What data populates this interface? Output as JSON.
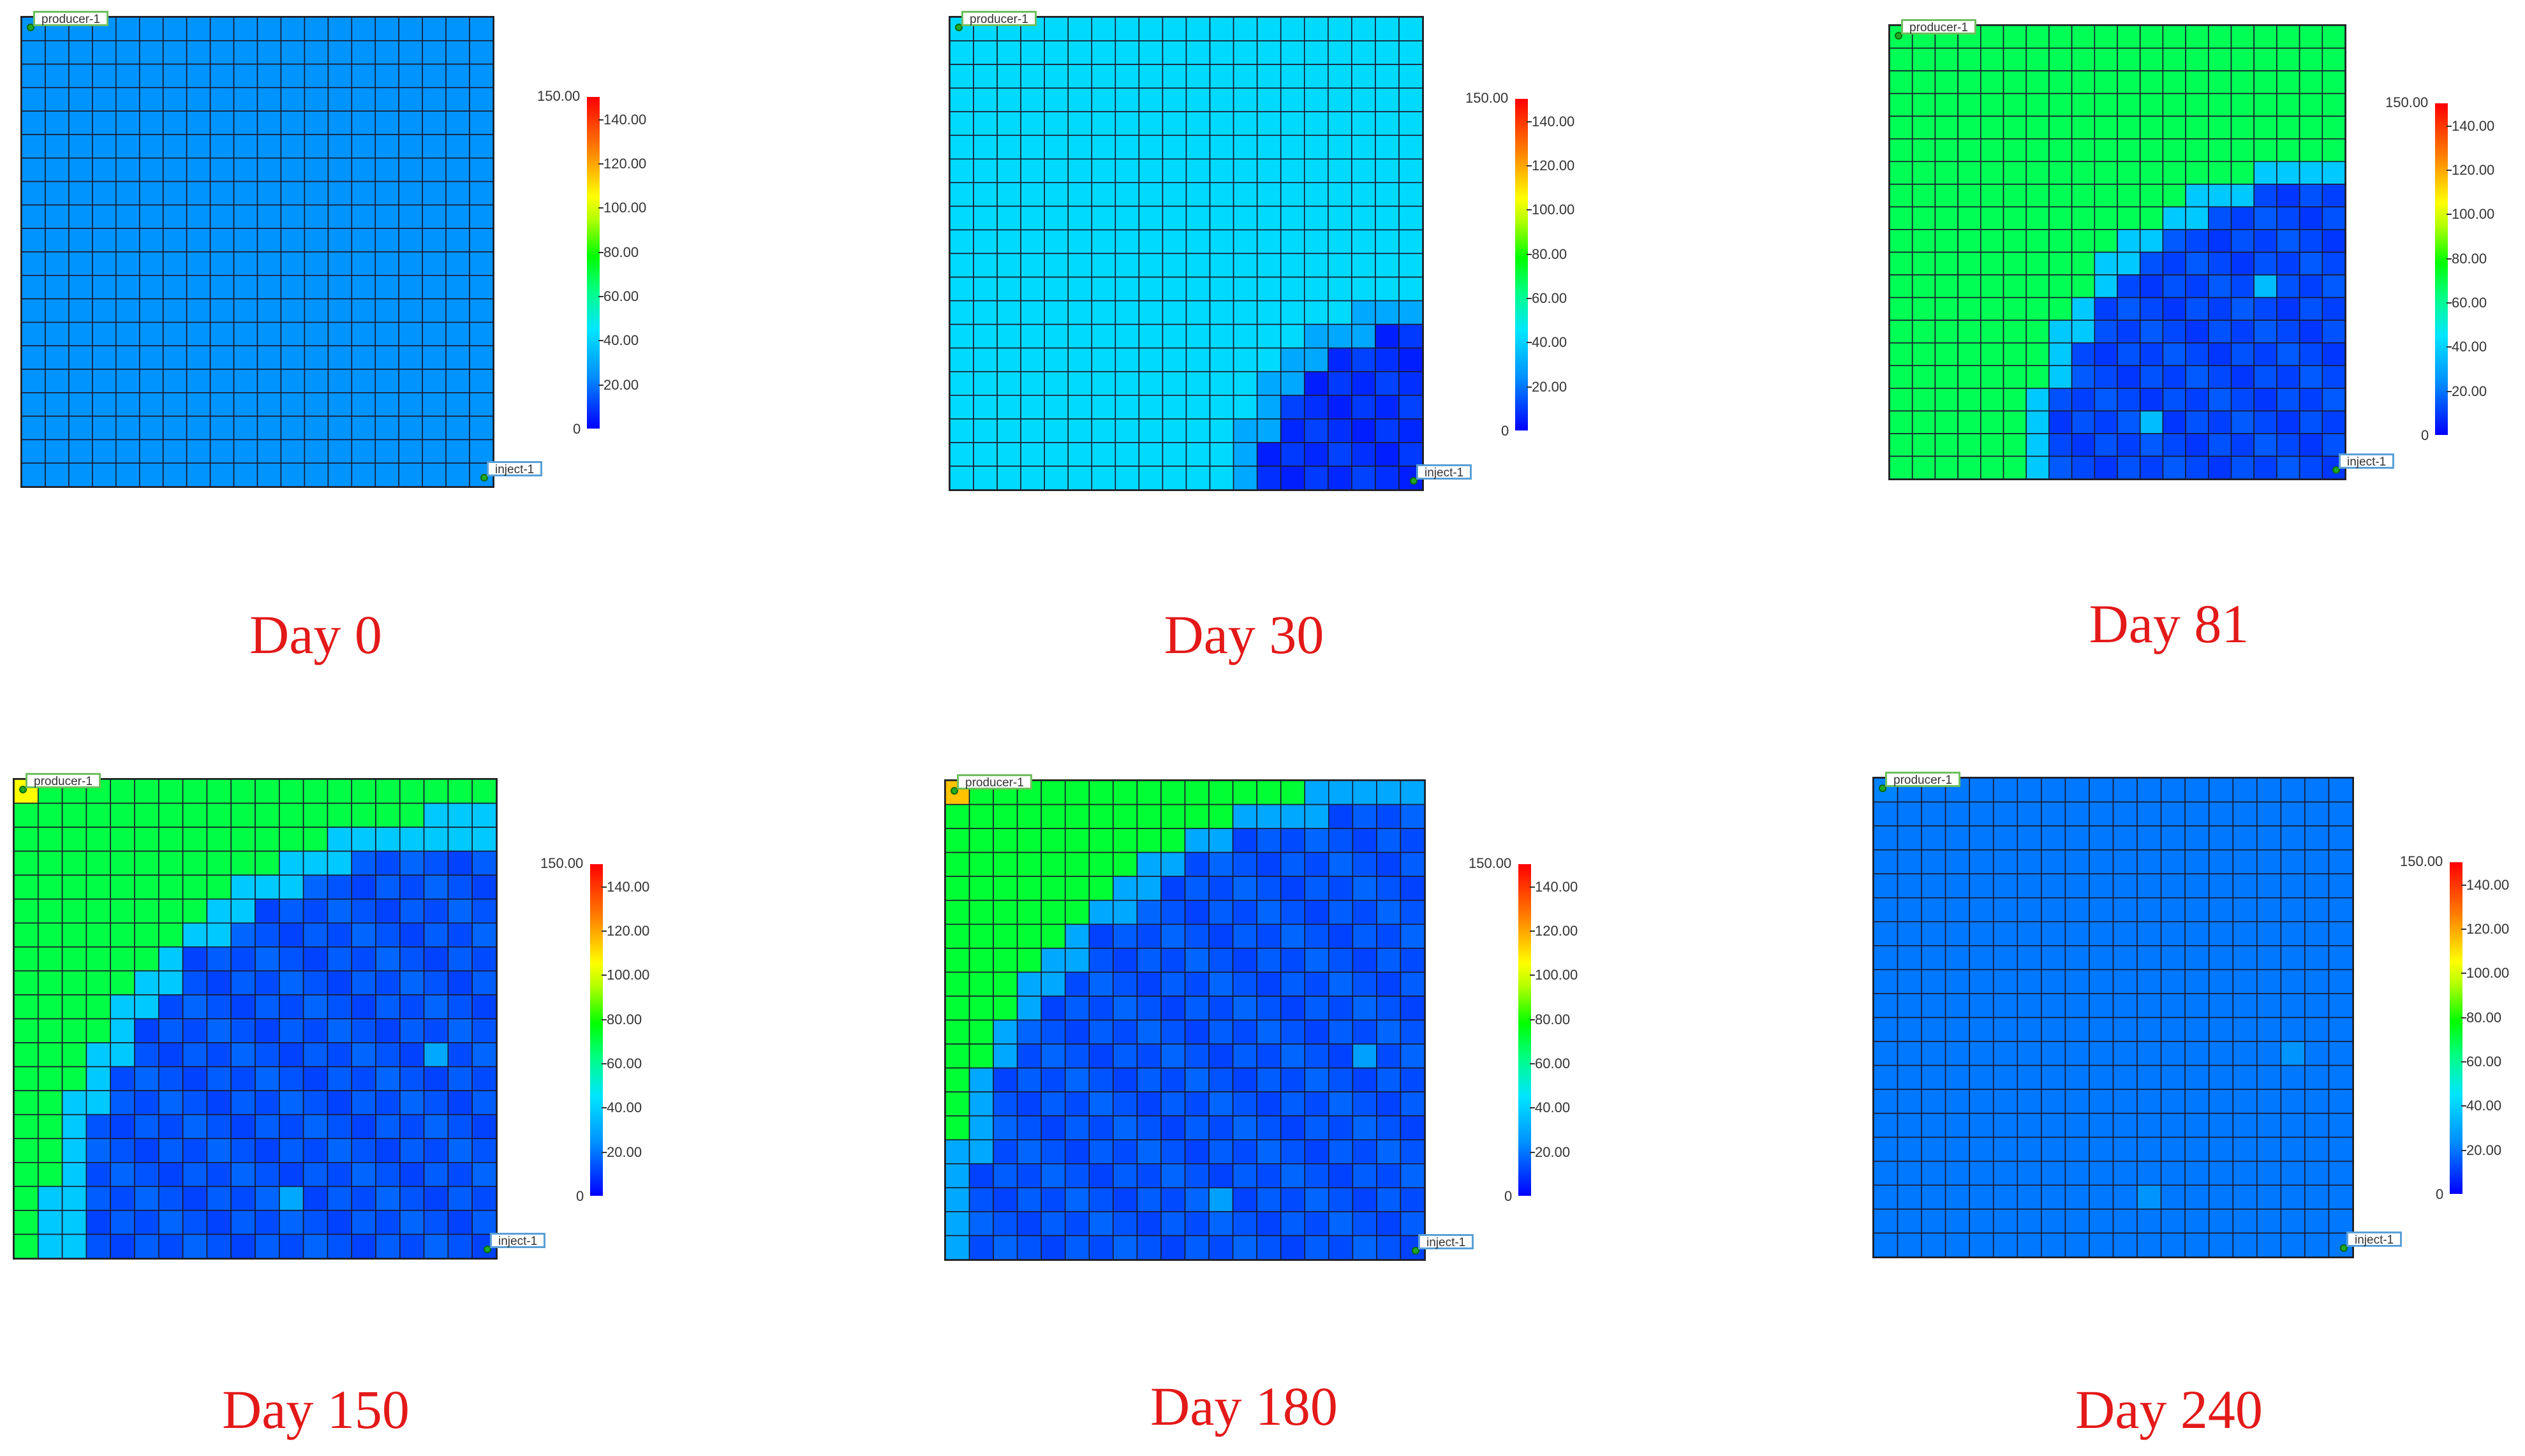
{
  "labels": {
    "producer": "producer-1",
    "injector": "inject-1"
  },
  "chart_data": [
    {
      "type": "heatmap",
      "title": "Day 0",
      "colorbar": {
        "min": 0,
        "max": 150,
        "ticks": [
          "150.00",
          "140.00",
          "120.00",
          "100.00",
          "80.00",
          "60.00",
          "40.00",
          "20.00",
          "0"
        ]
      },
      "grid_size": [
        20,
        20
      ],
      "base_value": 25,
      "regions": []
    },
    {
      "type": "heatmap",
      "title": "Day 30",
      "colorbar": {
        "min": 0,
        "max": 150,
        "ticks": [
          "150.00",
          "140.00",
          "120.00",
          "100.00",
          "80.00",
          "60.00",
          "40.00",
          "20.00",
          "0"
        ]
      },
      "grid_size": [
        20,
        20
      ],
      "base_value": 42,
      "front": {
        "type": "circle_from_injector",
        "radius": 7.3,
        "inner_value": 8,
        "edge_value": 30
      }
    },
    {
      "type": "heatmap",
      "title": "Day 81",
      "colorbar": {
        "min": 0,
        "max": 150,
        "ticks": [
          "150.00",
          "140.00",
          "120.00",
          "100.00",
          "80.00",
          "60.00",
          "40.00",
          "20.00",
          "0"
        ]
      },
      "grid_size": [
        20,
        20
      ],
      "base_value": 68,
      "front": {
        "type": "circle_from_injector",
        "radius": 13.6,
        "inner_value": 12,
        "edge_value": 38
      },
      "highlights": [
        {
          "col": 16,
          "row": 11,
          "value": 35
        },
        {
          "col": 11,
          "row": 17,
          "value": 35
        }
      ]
    },
    {
      "type": "heatmap",
      "title": "Day 150",
      "colorbar": {
        "min": 0,
        "max": 150,
        "ticks": [
          "150.00",
          "140.00",
          "120.00",
          "100.00",
          "80.00",
          "60.00",
          "40.00",
          "20.00",
          "0"
        ]
      },
      "grid_size": [
        20,
        20
      ],
      "base_value": 70,
      "producer_value": 105,
      "front": {
        "type": "circle_from_injector",
        "radius": 18.2,
        "inner_value": 14,
        "edge_value": 38
      },
      "highlights": [
        {
          "col": 17,
          "row": 11,
          "value": 30
        },
        {
          "col": 11,
          "row": 17,
          "value": 30
        }
      ]
    },
    {
      "type": "heatmap",
      "title": "Day 180",
      "colorbar": {
        "min": 0,
        "max": 150,
        "ticks": [
          "150.00",
          "140.00",
          "120.00",
          "100.00",
          "80.00",
          "60.00",
          "40.00",
          "20.00",
          "0"
        ]
      },
      "grid_size": [
        20,
        20
      ],
      "base_value": 72,
      "producer_value": 115,
      "front": {
        "type": "circle_from_injector",
        "radius": 19.6,
        "inner_value": 14,
        "edge_value": 30
      },
      "highlights": [
        {
          "col": 17,
          "row": 11,
          "value": 28
        },
        {
          "col": 11,
          "row": 17,
          "value": 28
        }
      ]
    },
    {
      "type": "heatmap",
      "title": "Day 240",
      "colorbar": {
        "min": 0,
        "max": 150,
        "ticks": [
          "150.00",
          "140.00",
          "120.00",
          "100.00",
          "80.00",
          "60.00",
          "40.00",
          "20.00",
          "0"
        ]
      },
      "grid_size": [
        20,
        20
      ],
      "base_value": 20,
      "producer_value": 22,
      "front": {
        "type": "none"
      },
      "highlights": [
        {
          "col": 17,
          "row": 11,
          "value": 25
        },
        {
          "col": 11,
          "row": 17,
          "value": 25
        }
      ]
    }
  ]
}
